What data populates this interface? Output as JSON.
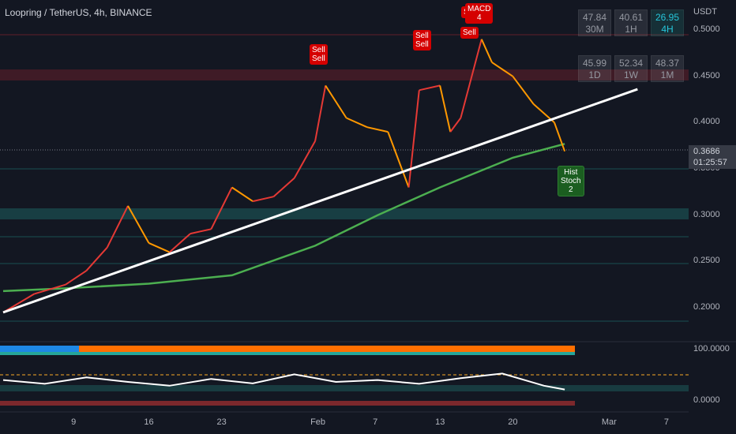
{
  "symbol": "Loopring / TetherUS, 4h, BINANCE",
  "currency": "USDT",
  "price_axis": [
    "0.5000",
    "0.4500",
    "0.4000",
    "0.3500",
    "0.3000",
    "0.2500",
    "0.2000"
  ],
  "price_tag": {
    "price": "0.3686",
    "countdown": "01:25:57"
  },
  "time_axis": [
    "9",
    "16",
    "23",
    "Feb",
    "7",
    "13",
    "20",
    "Mar",
    "7"
  ],
  "osc_axis": [
    "100.0000",
    "0.0000"
  ],
  "rsi_table": [
    {
      "value": "47.84",
      "tf": "30M",
      "active": false
    },
    {
      "value": "40.61",
      "tf": "1H",
      "active": false
    },
    {
      "value": "26.95",
      "tf": "4H",
      "active": true
    },
    {
      "value": "45.99",
      "tf": "1D",
      "active": false
    },
    {
      "value": "52.34",
      "tf": "1W",
      "active": false
    },
    {
      "value": "48.37",
      "tf": "1M",
      "active": false
    }
  ],
  "signals": [
    {
      "text": "Sell\nSell",
      "type": "sell"
    },
    {
      "text": "Sell\nSell",
      "type": "sell"
    },
    {
      "text": "Sell",
      "type": "sell"
    },
    {
      "text": "Sell",
      "type": "sell"
    },
    {
      "text": "MACD\n4",
      "type": "sell"
    },
    {
      "text": "Hist\nStoch\n2",
      "type": "buy"
    }
  ],
  "colors": {
    "background": "#131722",
    "trendline": "#ffffff",
    "ma": "#4caf50",
    "bull": "#ff9800",
    "bear": "#e53935"
  },
  "chart_data": {
    "type": "line",
    "price_series": [
      [
        "2022-01-02",
        0.195
      ],
      [
        "2022-01-05",
        0.215
      ],
      [
        "2022-01-08",
        0.225
      ],
      [
        "2022-01-10",
        0.24
      ],
      [
        "2022-01-12",
        0.265
      ],
      [
        "2022-01-14",
        0.31
      ],
      [
        "2022-01-16",
        0.27
      ],
      [
        "2022-01-18",
        0.26
      ],
      [
        "2022-01-20",
        0.28
      ],
      [
        "2022-01-22",
        0.285
      ],
      [
        "2022-01-24",
        0.33
      ],
      [
        "2022-01-26",
        0.315
      ],
      [
        "2022-01-28",
        0.32
      ],
      [
        "2022-01-30",
        0.34
      ],
      [
        "2022-02-01",
        0.38
      ],
      [
        "2022-02-02",
        0.44
      ],
      [
        "2022-02-04",
        0.405
      ],
      [
        "2022-02-06",
        0.395
      ],
      [
        "2022-02-08",
        0.39
      ],
      [
        "2022-02-10",
        0.33
      ],
      [
        "2022-02-11",
        0.435
      ],
      [
        "2022-02-13",
        0.44
      ],
      [
        "2022-02-14",
        0.39
      ],
      [
        "2022-02-15",
        0.405
      ],
      [
        "2022-02-17",
        0.49
      ],
      [
        "2022-02-18",
        0.465
      ],
      [
        "2022-02-20",
        0.45
      ],
      [
        "2022-02-22",
        0.42
      ],
      [
        "2022-02-24",
        0.4
      ],
      [
        "2022-02-25",
        0.369
      ]
    ],
    "moving_average": [
      [
        "2022-01-02",
        0.218
      ],
      [
        "2022-01-08",
        0.221
      ],
      [
        "2022-01-16",
        0.226
      ],
      [
        "2022-01-24",
        0.235
      ],
      [
        "2022-02-01",
        0.267
      ],
      [
        "2022-02-07",
        0.3
      ],
      [
        "2022-02-13",
        0.33
      ],
      [
        "2022-02-20",
        0.362
      ],
      [
        "2022-02-25",
        0.377
      ]
    ],
    "trendline": [
      [
        "2022-01-02",
        0.195
      ],
      [
        "2022-03-04",
        0.436
      ]
    ],
    "oscillator": [
      [
        "2022-01-02",
        55
      ],
      [
        "2022-01-06",
        45
      ],
      [
        "2022-01-10",
        62
      ],
      [
        "2022-01-14",
        50
      ],
      [
        "2022-01-18",
        40
      ],
      [
        "2022-01-22",
        58
      ],
      [
        "2022-01-26",
        46
      ],
      [
        "2022-01-30",
        70
      ],
      [
        "2022-02-03",
        50
      ],
      [
        "2022-02-07",
        55
      ],
      [
        "2022-02-11",
        45
      ],
      [
        "2022-02-15",
        60
      ],
      [
        "2022-02-19",
        72
      ],
      [
        "2022-02-23",
        40
      ],
      [
        "2022-02-25",
        30
      ]
    ],
    "ylim": [
      0.18,
      0.52
    ]
  }
}
